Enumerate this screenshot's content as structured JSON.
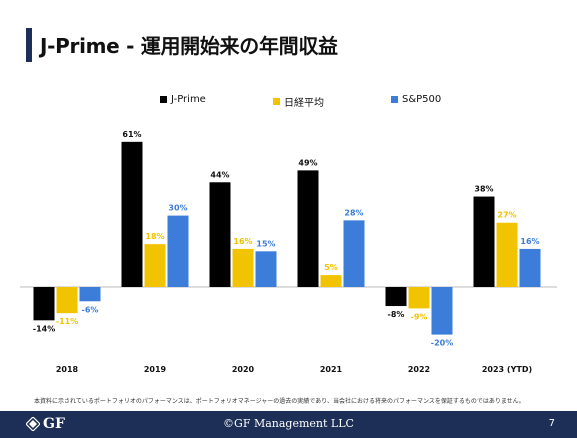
{
  "title": "J-Prime - 運用開始来の年間収益",
  "footnote": "本資料に示されているポートフォリオのパフォーマンスは、ポートフォリオマネージャーの過去の実績であり、当会社における将来のパフォーマンスを保証するものではありません。",
  "footer": {
    "logo_text": "GF",
    "copyright": "©GF Management LLC",
    "page_number": "7"
  },
  "colors": {
    "navy": "#1d2f57",
    "jprime": "#000000",
    "nikkei": "#f2c300",
    "sp500": "#3b7dd8"
  },
  "chart_data": {
    "type": "bar",
    "categories": [
      "2018",
      "2019",
      "2020",
      "2021",
      "2022",
      "2023 (YTD)"
    ],
    "series": [
      {
        "name": "J-Prime",
        "color": "#000000",
        "values": [
          -14,
          61,
          44,
          49,
          -8,
          38
        ],
        "labels": [
          "-14%",
          "61%",
          "44%",
          "49%",
          "-8%",
          "38%"
        ]
      },
      {
        "name": "日経平均",
        "color": "#f2c300",
        "values": [
          -11,
          18,
          16,
          5,
          -9,
          27
        ],
        "labels": [
          "-11%",
          "18%",
          "16%",
          "5%",
          "-9%",
          "27%"
        ]
      },
      {
        "name": "S&P500",
        "color": "#3b7dd8",
        "values": [
          -6,
          30,
          15,
          28,
          -20,
          16
        ],
        "labels": [
          "-6%",
          "30%",
          "15%",
          "28%",
          "-20%",
          "16%"
        ]
      }
    ],
    "legend": "top",
    "grid": false,
    "ylim": [
      -25,
      65
    ]
  }
}
